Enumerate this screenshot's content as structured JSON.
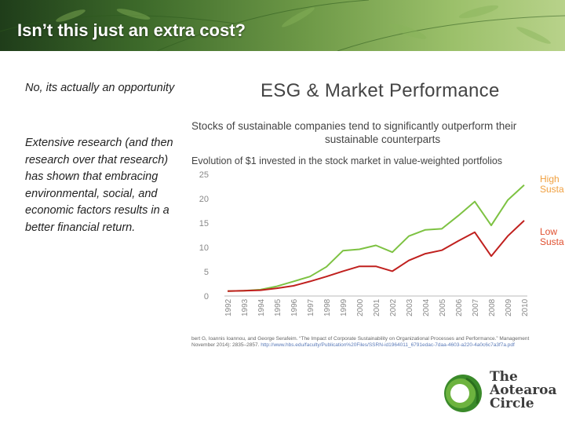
{
  "slide": {
    "title": "Isn’t this just an extra cost?",
    "paragraph1": "No, its actually an opportunity",
    "paragraph2": "Extensive research (and then research over that research) has shown that embracing environmental, social, and economic factors results in a better financial return."
  },
  "figure": {
    "heading": "ESG & Market Performance",
    "subtitle_line1": "Stocks of sustainable companies tend to significantly outperform their",
    "subtitle_line2": "sustainable counterparts",
    "chart_caption": "Evolution of $1 invested in the stock market in value-weighted portfolios",
    "source_line1": "bert G, Ioannis Ioannou, and George Serafeim. “The Impact of Corporate Sustainability on Organizational Processes and Performance.” Management",
    "source_line2_prefix": "November 2014): 2835–2857.",
    "source_line2_url": "http://www.hbs.edu/faculty/Publication%20Files/SSRN-id1964011_6791edac-7daa-4603-a220-4a0c6c7a3f7a.pdf"
  },
  "logo": {
    "line1": "The",
    "line2": "Aotearoa",
    "line3": "Circle"
  },
  "colors": {
    "high_series": "#7dc242",
    "low_series": "#c0201e",
    "series_label_high": "#f0a040",
    "series_label_low": "#e05030",
    "logo_green": "#3a8a2a"
  },
  "chart_data": {
    "type": "line",
    "title": "Evolution of $1 invested in the stock market in value-weighted portfolios",
    "categories": [
      "1992",
      "1993",
      "1994",
      "1995",
      "1996",
      "1997",
      "1998",
      "1999",
      "2000",
      "2001",
      "2002",
      "2003",
      "2004",
      "2005",
      "2006",
      "2007",
      "2008",
      "2009",
      "2010"
    ],
    "series": [
      {
        "name": "High Susta",
        "color": "#7dc242",
        "values": [
          1.0,
          1.1,
          1.3,
          2.0,
          3.0,
          4.0,
          6.0,
          9.3,
          9.6,
          10.4,
          9.0,
          12.3,
          13.6,
          13.8,
          16.5,
          19.4,
          14.5,
          19.7,
          22.8
        ]
      },
      {
        "name": "Low Susta",
        "color": "#c0201e",
        "values": [
          1.0,
          1.1,
          1.2,
          1.6,
          2.1,
          3.0,
          4.0,
          5.1,
          6.1,
          6.1,
          5.1,
          7.3,
          8.7,
          9.4,
          11.3,
          13.1,
          8.2,
          12.3,
          15.5
        ]
      }
    ],
    "y_ticks": [
      "0",
      "5",
      "10",
      "15",
      "20",
      "25"
    ],
    "ylim": [
      0,
      25
    ],
    "grid": false,
    "legend": "right"
  }
}
